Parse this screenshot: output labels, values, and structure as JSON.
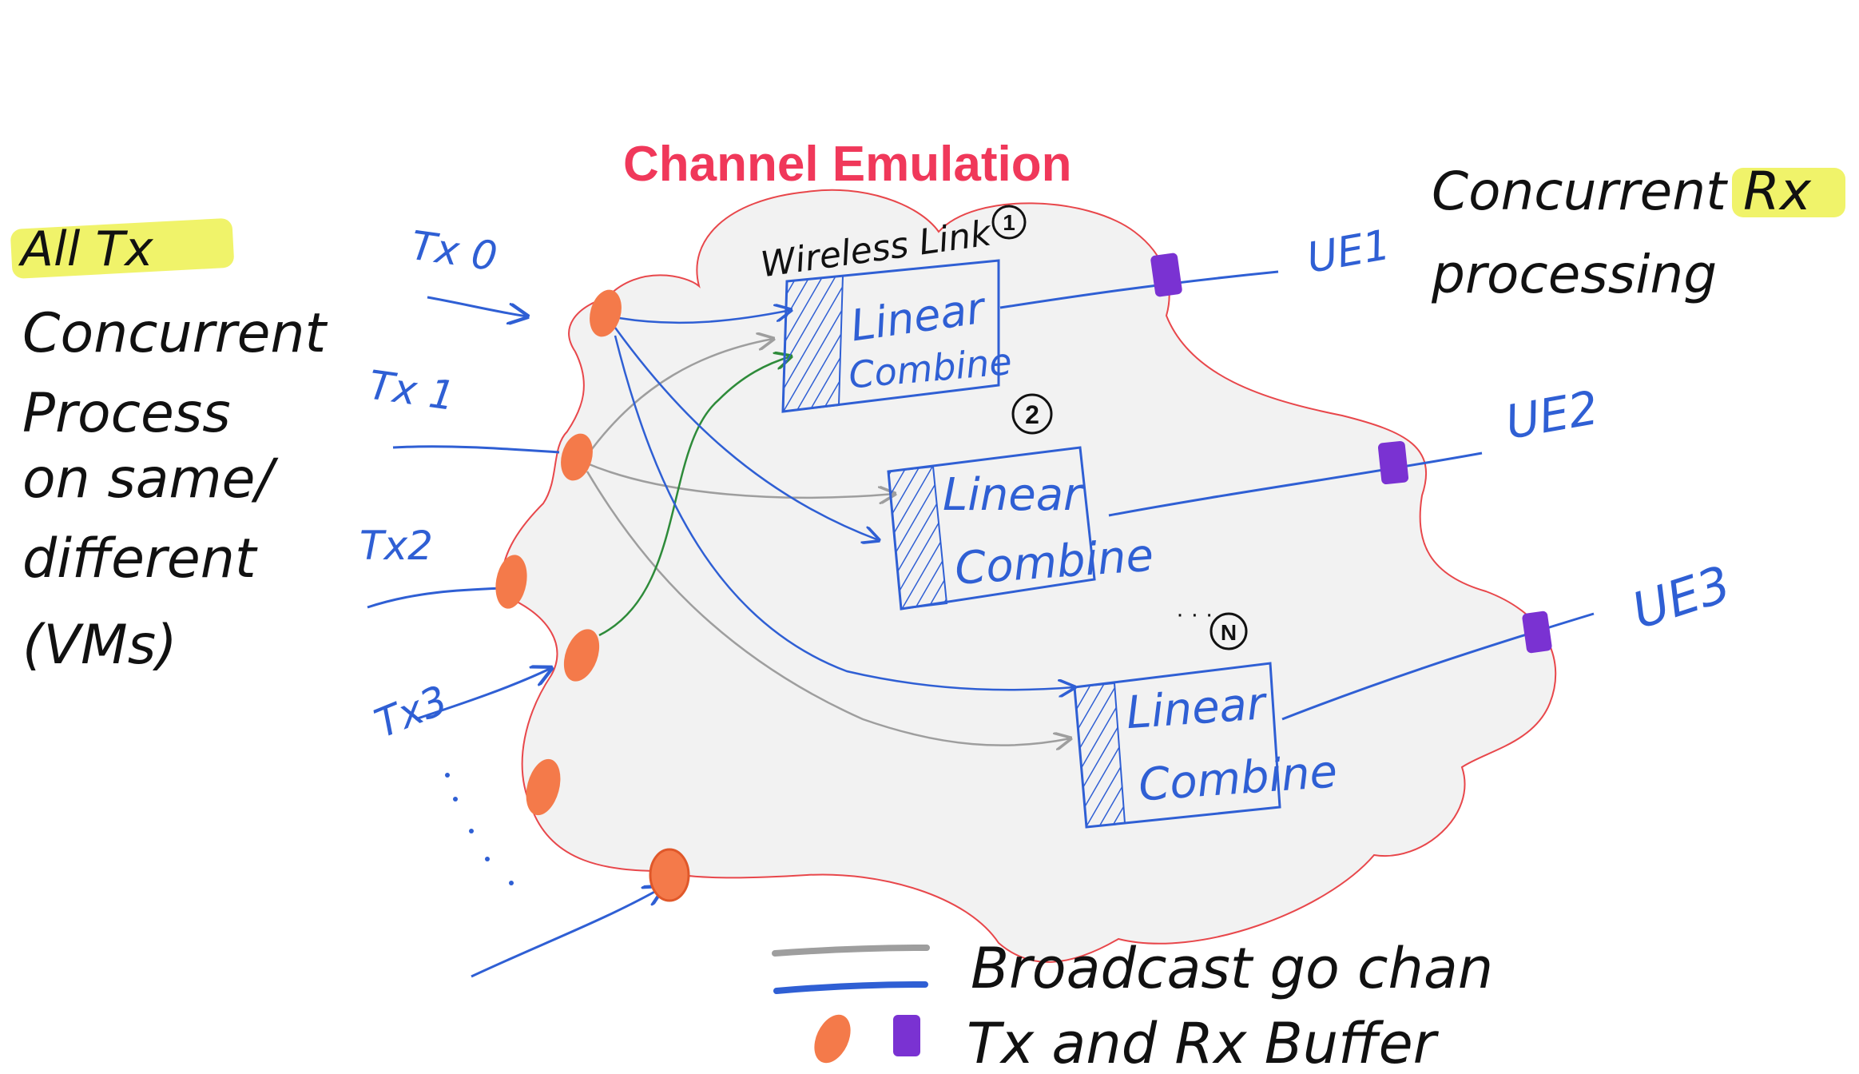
{
  "title": "Channel Emulation",
  "left_note": {
    "highlight": "All Tx",
    "lines": [
      "Concurrent",
      "Process",
      "on same/",
      "different",
      "(VMs)"
    ]
  },
  "right_note": {
    "line1_prefix": "Concurrent ",
    "line1_highlight": "Rx",
    "line2": "processing"
  },
  "wireless_link_label": "Wireless Link",
  "transmitters": [
    "Tx 0",
    "Tx 1",
    "Tx2",
    "Tx3"
  ],
  "receivers": [
    "UE1",
    "UE2",
    "UE3"
  ],
  "links": [
    {
      "index_mark": "1",
      "line1": "Linear",
      "line2": "Combine"
    },
    {
      "index_mark": "2",
      "line1": "Linear",
      "line2": "Combine"
    },
    {
      "index_mark": "N",
      "line1": "Linear",
      "line2": "Combine"
    }
  ],
  "legend": {
    "channel_label": "Broadcast go chan",
    "buffer_label": "Tx and Rx Buffer"
  },
  "colors": {
    "title": "#f0385a",
    "cloud_border": "#e8474b",
    "cloud_fill": "#f2f2f2",
    "wire_blue": "#2f5fd4",
    "wire_gray": "#9e9e9e",
    "wire_green": "#2e8b3a",
    "tx_buffer": "#f47a4a",
    "rx_buffer": "#7a32d2",
    "highlight": "#eef25a"
  }
}
